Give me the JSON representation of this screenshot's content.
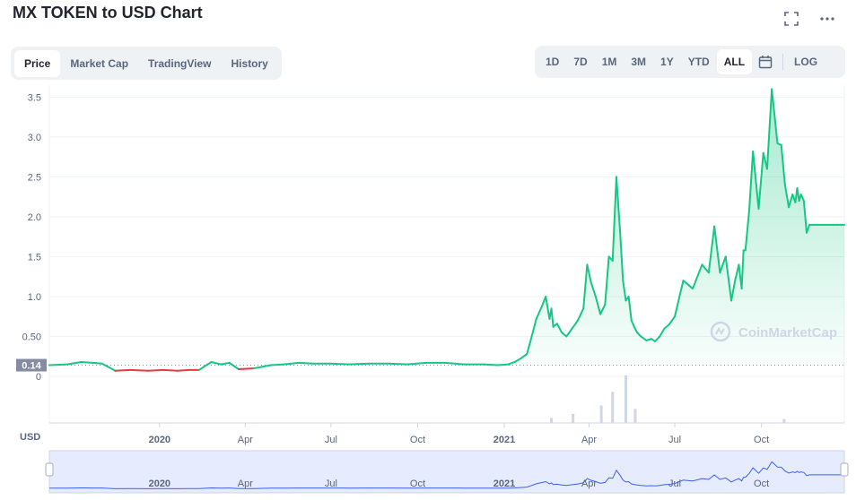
{
  "header": {
    "title": "MX TOKEN to USD Chart"
  },
  "icons": {
    "fullscreen": "fullscreen-icon",
    "more": "more-icon",
    "calendar": "calendar-icon",
    "logo": "coinmarketcap-logo"
  },
  "tabs": [
    {
      "label": "Price",
      "active": true
    },
    {
      "label": "Market Cap",
      "active": false
    },
    {
      "label": "TradingView",
      "active": false
    },
    {
      "label": "History",
      "active": false
    }
  ],
  "ranges": [
    {
      "label": "1D",
      "active": false
    },
    {
      "label": "7D",
      "active": false
    },
    {
      "label": "1M",
      "active": false
    },
    {
      "label": "3M",
      "active": false
    },
    {
      "label": "1Y",
      "active": false
    },
    {
      "label": "YTD",
      "active": false
    },
    {
      "label": "ALL",
      "active": true
    }
  ],
  "log_label": "LOG",
  "watermark": "CoinMarketCap",
  "colors": {
    "up": "#16c784",
    "down": "#ea3943",
    "brush": "#3861fb",
    "grid": "#eff2f5",
    "text": "#58667e"
  },
  "chart_data": {
    "type": "line",
    "title": "MX TOKEN to USD Chart",
    "ylabel": "USD",
    "yticks": [
      "0",
      "0.50",
      "1.0",
      "1.5",
      "2.0",
      "2.5",
      "3.0",
      "3.5"
    ],
    "ytick_values": [
      0,
      0.5,
      1.0,
      1.5,
      2.0,
      2.5,
      3.0,
      3.5
    ],
    "ylim": [
      0,
      3.65
    ],
    "xticks": [
      "2020",
      "Apr",
      "Jul",
      "Oct",
      "2021",
      "Apr",
      "Jul",
      "Oct"
    ],
    "xtick_dates": [
      "2020-01-01",
      "2020-04-01",
      "2020-07-01",
      "2020-10-01",
      "2021-01-01",
      "2021-04-01",
      "2021-07-01",
      "2021-10-01"
    ],
    "x_range": [
      "2019-09-06",
      "2021-12-28"
    ],
    "reference_price_label": "0.14",
    "reference_price": 0.14,
    "grid": true,
    "series": [
      {
        "values_x": [
          "2019-09-06",
          "2019-09-25",
          "2019-10-10",
          "2019-10-22",
          "2019-11-01",
          "2019-11-15",
          "2019-12-01",
          "2019-12-20",
          "2020-01-05",
          "2020-01-20",
          "2020-02-01",
          "2020-02-12",
          "2020-02-25",
          "2020-03-06",
          "2020-03-15",
          "2020-03-25",
          "2020-04-10",
          "2020-04-28",
          "2020-05-12",
          "2020-05-28",
          "2020-06-12",
          "2020-07-01",
          "2020-07-20",
          "2020-08-10",
          "2020-09-01",
          "2020-09-20",
          "2020-10-10",
          "2020-10-30",
          "2020-11-20",
          "2020-12-10",
          "2020-12-25",
          "2021-01-05",
          "2021-01-12",
          "2021-01-18",
          "2021-01-25",
          "2021-01-29",
          "2021-02-04",
          "2021-02-10",
          "2021-02-14",
          "2021-02-18",
          "2021-02-20",
          "2021-02-22",
          "2021-02-26",
          "2021-03-03",
          "2021-03-08",
          "2021-03-14",
          "2021-03-20",
          "2021-03-26",
          "2021-03-30",
          "2021-04-03",
          "2021-04-08",
          "2021-04-13",
          "2021-04-18",
          "2021-04-22",
          "2021-04-26",
          "2021-04-30",
          "2021-05-04",
          "2021-05-07",
          "2021-05-10",
          "2021-05-13",
          "2021-05-16",
          "2021-05-19",
          "2021-05-22",
          "2021-05-26",
          "2021-06-01",
          "2021-06-06",
          "2021-06-10",
          "2021-06-15",
          "2021-06-20",
          "2021-06-25",
          "2021-07-01",
          "2021-07-10",
          "2021-07-20",
          "2021-07-30",
          "2021-08-06",
          "2021-08-12",
          "2021-08-18",
          "2021-08-24",
          "2021-08-30",
          "2021-09-03",
          "2021-09-07",
          "2021-09-10",
          "2021-09-12",
          "2021-09-14",
          "2021-09-18",
          "2021-09-22",
          "2021-09-28",
          "2021-10-03",
          "2021-10-07",
          "2021-10-12",
          "2021-10-18",
          "2021-10-22",
          "2021-10-26",
          "2021-10-30",
          "2021-11-03",
          "2021-11-06",
          "2021-11-08",
          "2021-11-10",
          "2021-11-12",
          "2021-11-15",
          "2021-11-18",
          "2021-11-21",
          "2021-11-24",
          "2021-11-27",
          "2021-11-30",
          "2021-12-04",
          "2021-12-08",
          "2021-12-12",
          "2021-12-16",
          "2021-12-20",
          "2021-12-24",
          "2021-12-28"
        ],
        "values_y": [
          0.14,
          0.15,
          0.18,
          0.17,
          0.16,
          0.07,
          0.08,
          0.07,
          0.08,
          0.07,
          0.08,
          0.08,
          0.18,
          0.15,
          0.17,
          0.09,
          0.1,
          0.14,
          0.15,
          0.17,
          0.16,
          0.16,
          0.15,
          0.16,
          0.16,
          0.15,
          0.17,
          0.17,
          0.15,
          0.15,
          0.14,
          0.15,
          0.18,
          0.22,
          0.28,
          0.45,
          0.72,
          0.88,
          1.0,
          0.72,
          0.85,
          0.62,
          0.66,
          0.55,
          0.5,
          0.6,
          0.7,
          0.85,
          1.4,
          1.18,
          1.0,
          0.78,
          0.9,
          1.5,
          1.45,
          2.5,
          1.8,
          1.2,
          0.95,
          1.0,
          0.7,
          0.62,
          0.55,
          0.5,
          0.45,
          0.47,
          0.44,
          0.5,
          0.6,
          0.65,
          0.75,
          1.2,
          1.1,
          1.4,
          1.3,
          1.88,
          1.3,
          1.5,
          0.95,
          1.2,
          1.4,
          1.1,
          1.58,
          1.58,
          2.08,
          2.82,
          2.1,
          2.8,
          2.6,
          3.6,
          2.92,
          2.9,
          2.4,
          2.12,
          2.28,
          2.18,
          2.36,
          2.2,
          2.28,
          2.2,
          1.8,
          1.9,
          1.9,
          1.9,
          1.9,
          1.9,
          1.9,
          1.9,
          1.9,
          1.9,
          1.9,
          1.9
        ],
        "color": "#16c784"
      }
    ],
    "volume_peaks": [
      {
        "date": "2021-02-20",
        "value": 0.1
      },
      {
        "date": "2021-03-15",
        "value": 0.18
      },
      {
        "date": "2021-04-14",
        "value": 0.35
      },
      {
        "date": "2021-04-26",
        "value": 0.62
      },
      {
        "date": "2021-05-10",
        "value": 0.95
      },
      {
        "date": "2021-05-20",
        "value": 0.28
      },
      {
        "date": "2021-10-25",
        "value": 0.08
      }
    ],
    "navigator_xticks": [
      "2020",
      "Apr",
      "Jul",
      "Oct",
      "2021",
      "Apr",
      "Jul",
      "Oct"
    ]
  }
}
